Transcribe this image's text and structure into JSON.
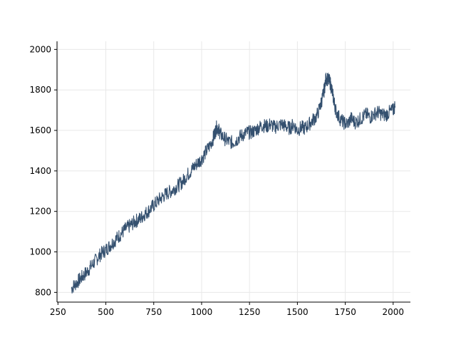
{
  "chart_data": {
    "type": "line",
    "title": "",
    "xlabel": "",
    "ylabel": "",
    "xlim": [
      245,
      2090
    ],
    "ylim": [
      752,
      2040
    ],
    "x_ticks": [
      "250",
      "500",
      "750",
      "1000",
      "1250",
      "1500",
      "1750",
      "2000"
    ],
    "y_ticks": [
      "800",
      "1000",
      "1200",
      "1400",
      "1600",
      "1800",
      "2000"
    ],
    "grid": true,
    "line_color": "#34506f",
    "grid_color": "#e8e8e8",
    "series": [
      {
        "x": [
          320,
          340,
          360,
          380,
          400,
          420,
          440,
          460,
          480,
          500,
          520,
          540,
          560,
          580,
          600,
          620,
          640,
          660,
          680,
          700,
          720,
          740,
          760,
          780,
          800,
          820,
          840,
          860,
          880,
          900,
          920,
          940,
          960,
          980,
          1000,
          1020,
          1040,
          1060,
          1070,
          1080,
          1090,
          1100,
          1120,
          1140,
          1160,
          1180,
          1200,
          1220,
          1240,
          1260,
          1280,
          1300,
          1320,
          1340,
          1360,
          1380,
          1400,
          1420,
          1440,
          1460,
          1480,
          1500,
          1520,
          1540,
          1560,
          1580,
          1600,
          1620,
          1630,
          1640,
          1650,
          1660,
          1670,
          1680,
          1690,
          1700,
          1720,
          1740,
          1760,
          1780,
          1800,
          1820,
          1840,
          1860,
          1880,
          1900,
          1920,
          1940,
          1960,
          1980,
          2000,
          2010
        ],
        "y": [
          820,
          840,
          860,
          880,
          900,
          925,
          950,
          975,
          995,
          1010,
          1030,
          1050,
          1070,
          1090,
          1110,
          1125,
          1140,
          1155,
          1165,
          1185,
          1200,
          1220,
          1240,
          1260,
          1275,
          1290,
          1300,
          1315,
          1330,
          1345,
          1375,
          1395,
          1420,
          1440,
          1460,
          1490,
          1520,
          1560,
          1590,
          1620,
          1600,
          1580,
          1560,
          1545,
          1540,
          1550,
          1570,
          1580,
          1590,
          1590,
          1600,
          1615,
          1625,
          1620,
          1630,
          1615,
          1625,
          1630,
          1620,
          1610,
          1630,
          1600,
          1615,
          1610,
          1630,
          1650,
          1670,
          1720,
          1760,
          1800,
          1860,
          1850,
          1840,
          1800,
          1750,
          1700,
          1660,
          1640,
          1630,
          1660,
          1640,
          1650,
          1665,
          1680,
          1665,
          1680,
          1690,
          1680,
          1675,
          1690,
          1700,
          1720
        ]
      }
    ]
  }
}
